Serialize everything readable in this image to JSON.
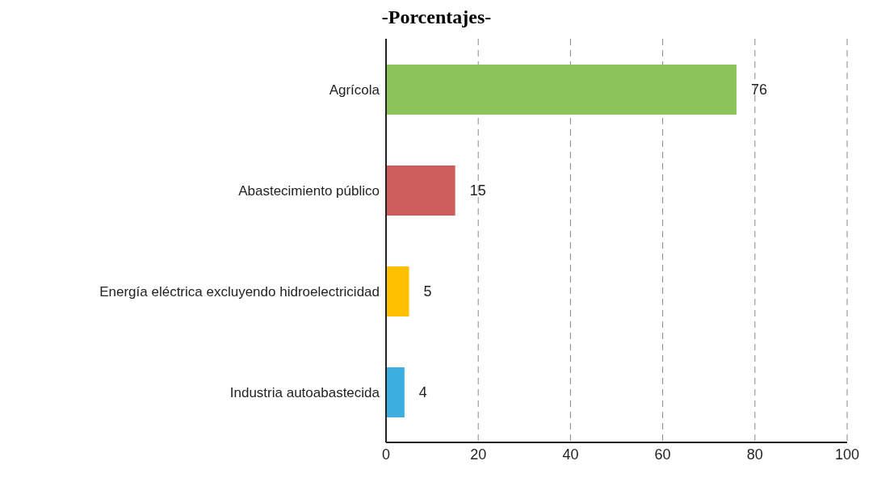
{
  "chart_data": {
    "type": "bar",
    "orientation": "horizontal",
    "title": "-Porcentajes-",
    "categories": [
      "Agrícola",
      "Abastecimiento público",
      "Energía eléctrica excluyendo hidroelectricidad",
      "Industria autoabastecida"
    ],
    "values": [
      76,
      15,
      5,
      4
    ],
    "colors": [
      "#8bc55a",
      "#cd5c5c",
      "#ffc000",
      "#3caee0"
    ],
    "xlim": [
      0,
      100
    ],
    "xticks": [
      0,
      20,
      40,
      60,
      80,
      100
    ],
    "grid": "x",
    "data_labels": true
  }
}
